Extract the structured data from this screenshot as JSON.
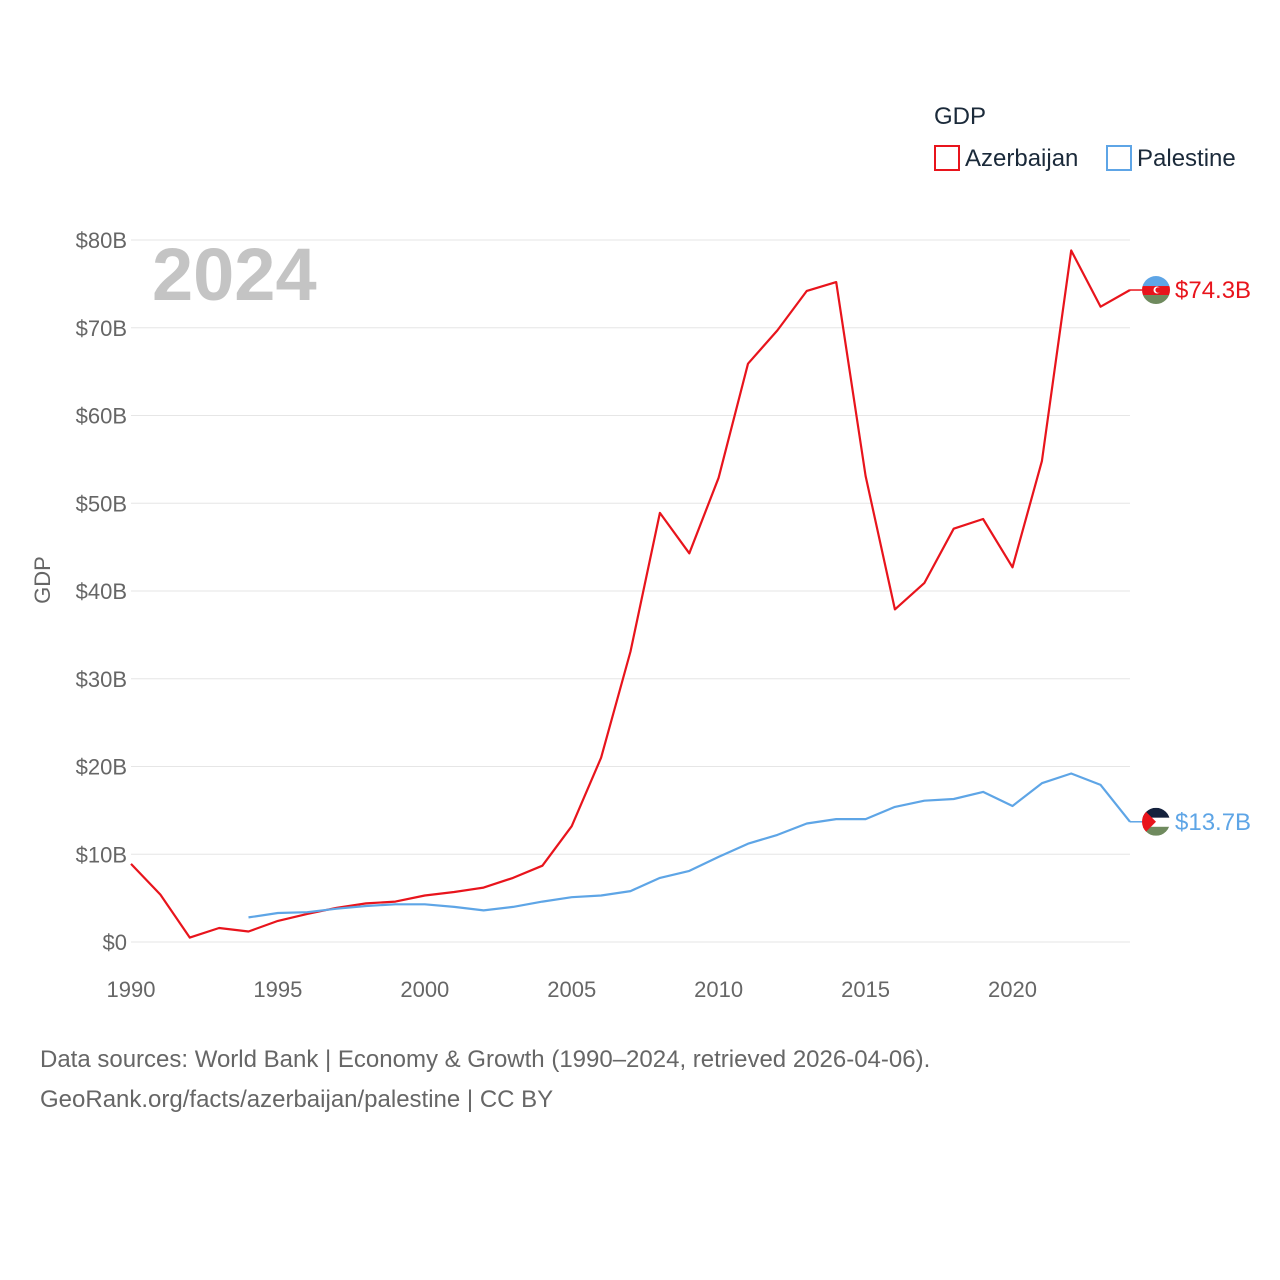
{
  "chart_data": {
    "type": "line",
    "title": "",
    "year_label": "2024",
    "ylabel": "GDP",
    "legend_title": "GDP",
    "xlim": [
      1990,
      2024
    ],
    "ylim": [
      0,
      80
    ],
    "x_ticks": [
      1990,
      1995,
      2000,
      2005,
      2010,
      2015,
      2020
    ],
    "y_ticks": [
      {
        "value": 0,
        "label": "$0"
      },
      {
        "value": 10,
        "label": "$10B"
      },
      {
        "value": 20,
        "label": "$20B"
      },
      {
        "value": 30,
        "label": "$30B"
      },
      {
        "value": 40,
        "label": "$40B"
      },
      {
        "value": 50,
        "label": "$50B"
      },
      {
        "value": 60,
        "label": "$60B"
      },
      {
        "value": 70,
        "label": "$70B"
      },
      {
        "value": 80,
        "label": "$80B"
      }
    ],
    "series": [
      {
        "name": "Azerbaijan",
        "color": "#e8141c",
        "end_label": "$74.3B",
        "x": [
          1990,
          1991,
          1992,
          1993,
          1994,
          1995,
          1996,
          1997,
          1998,
          1999,
          2000,
          2001,
          2002,
          2003,
          2004,
          2005,
          2006,
          2007,
          2008,
          2009,
          2010,
          2011,
          2012,
          2013,
          2014,
          2015,
          2016,
          2017,
          2018,
          2019,
          2020,
          2021,
          2022,
          2023,
          2024
        ],
        "values": [
          8.9,
          5.4,
          0.5,
          1.6,
          1.2,
          2.4,
          3.2,
          3.9,
          4.4,
          4.6,
          5.3,
          5.7,
          6.2,
          7.3,
          8.7,
          13.2,
          21.0,
          33.1,
          48.9,
          44.3,
          52.9,
          65.9,
          69.7,
          74.2,
          75.2,
          53.1,
          37.9,
          40.9,
          47.1,
          48.2,
          42.7,
          54.8,
          78.8,
          72.4,
          74.3
        ]
      },
      {
        "name": "Palestine",
        "color": "#5ea5e6",
        "end_label": "$13.7B",
        "x": [
          1994,
          1995,
          1996,
          1997,
          1998,
          1999,
          2000,
          2001,
          2002,
          2003,
          2004,
          2005,
          2006,
          2007,
          2008,
          2009,
          2010,
          2011,
          2012,
          2013,
          2014,
          2015,
          2016,
          2017,
          2018,
          2019,
          2020,
          2021,
          2022,
          2023,
          2024
        ],
        "values": [
          2.8,
          3.3,
          3.4,
          3.8,
          4.1,
          4.3,
          4.3,
          4.0,
          3.6,
          4.0,
          4.6,
          5.1,
          5.3,
          5.8,
          7.3,
          8.1,
          9.7,
          11.2,
          12.2,
          13.5,
          14.0,
          14.0,
          15.4,
          16.1,
          16.3,
          17.1,
          15.5,
          18.1,
          19.2,
          17.9,
          13.7
        ]
      }
    ]
  },
  "flags": [
    {
      "country": "Azerbaijan",
      "colors": [
        "#5ea5e6",
        "#e8141c",
        "#6f8a5e"
      ]
    },
    {
      "country": "Palestine",
      "colors": [
        "#14213d",
        "#ffffff",
        "#6f8a5e",
        "#e8141c"
      ]
    }
  ],
  "source": {
    "line1": "Data sources: World Bank | Economy & Growth (1990–2024, retrieved 2026-04-06).",
    "line2": "GeoRank.org/facts/azerbaijan/palestine | CC BY"
  }
}
